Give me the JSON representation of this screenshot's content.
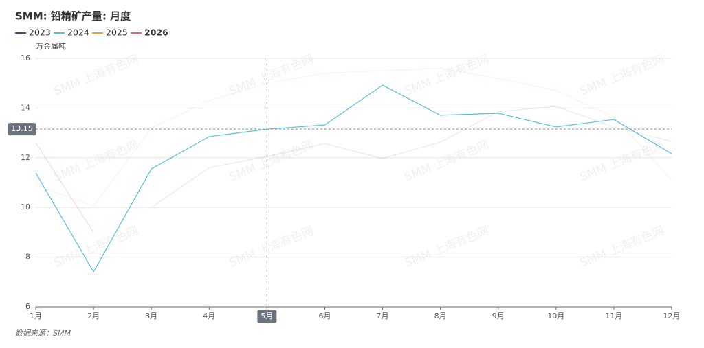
{
  "chart_data": {
    "type": "line",
    "title": "SMM: 铅精矿产量: 月度",
    "y_label": "万金属吨",
    "source": "数据来源：SMM",
    "watermark": "SMM 上海有色网",
    "categories": [
      "1月",
      "2月",
      "3月",
      "4月",
      "5月",
      "6月",
      "7月",
      "8月",
      "9月",
      "10月",
      "11月",
      "12月"
    ],
    "series": [
      {
        "name": "2023",
        "color": "#3c4a8c",
        "opacity": 0.12,
        "values": [
          null,
          null,
          10.0,
          11.6,
          12.05,
          12.57,
          11.97,
          12.63,
          13.85,
          14.07,
          13.24,
          12.66
        ]
      },
      {
        "name": "2024",
        "color": "#56c1d8",
        "opacity": 1,
        "values": [
          11.39,
          7.41,
          11.55,
          12.85,
          13.15,
          13.32,
          14.92,
          13.71,
          13.79,
          13.24,
          13.54,
          12.16
        ]
      },
      {
        "name": "2025",
        "color": "#f0a030",
        "opacity": 0.12,
        "values": [
          10.9,
          10.06,
          13.2,
          14.3,
          15.0,
          15.4,
          15.5,
          15.6,
          15.2,
          14.7,
          13.65,
          11.1
        ]
      },
      {
        "name": "2026",
        "color": "#f06070",
        "opacity": 0.25,
        "values": [
          12.6,
          9.0,
          null,
          null,
          null,
          null,
          null,
          null,
          null,
          null,
          null,
          null
        ]
      }
    ],
    "ylim": [
      6,
      16
    ],
    "yticks": [
      6,
      8,
      10,
      12,
      14,
      16
    ],
    "grid": true,
    "crosshair": {
      "category": "5月",
      "y": 13.15
    }
  }
}
